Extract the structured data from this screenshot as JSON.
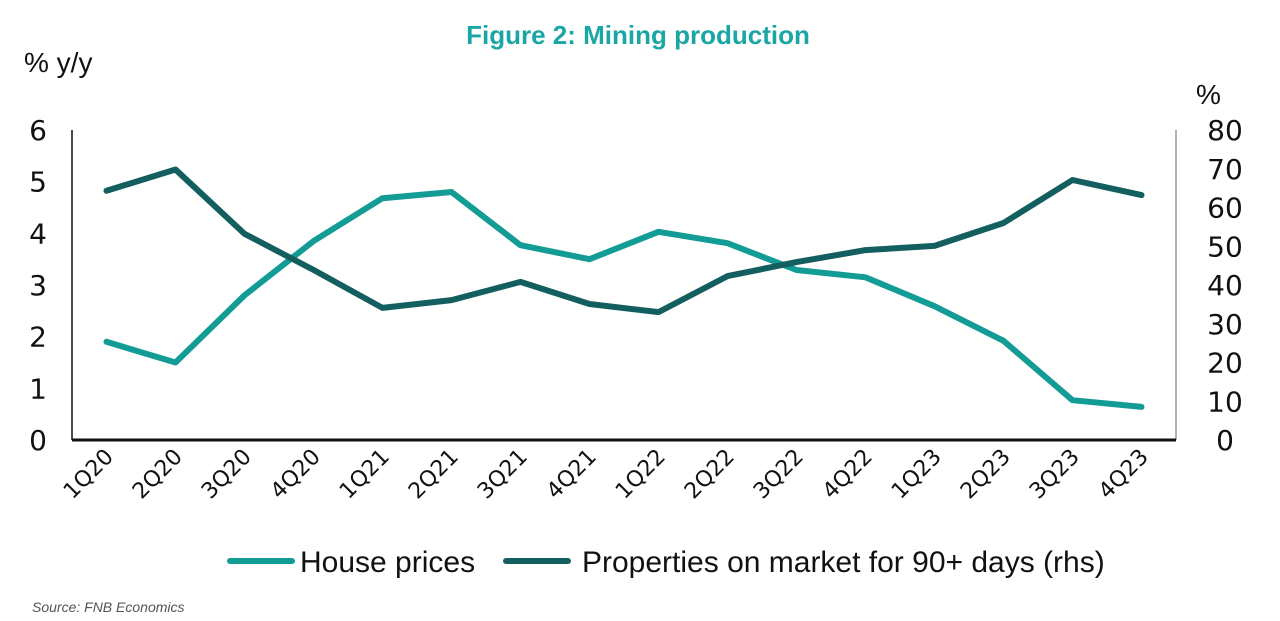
{
  "chart_data": {
    "type": "line",
    "title": "Figure 2: Mining production",
    "ylabel_left": "% y/y",
    "ylabel_right": "%",
    "xlabel": "",
    "categories": [
      "1Q20",
      "2Q20",
      "3Q20",
      "4Q20",
      "1Q21",
      "2Q21",
      "3Q21",
      "4Q21",
      "1Q22",
      "2Q22",
      "3Q22",
      "4Q22",
      "1Q23",
      "2Q23",
      "3Q23",
      "4Q23"
    ],
    "ylim_left": [
      0,
      6
    ],
    "yticks_left": [
      0,
      1,
      2,
      3,
      4,
      5,
      6
    ],
    "ylim_right": [
      0,
      80
    ],
    "yticks_right": [
      0,
      10,
      20,
      30,
      40,
      50,
      60,
      70,
      80
    ],
    "grid": false,
    "legend_position": "bottom",
    "series": [
      {
        "name": "House prices",
        "axis": "left",
        "color": "#139C96",
        "values": [
          1.9,
          1.5,
          2.8,
          3.85,
          4.68,
          4.8,
          3.77,
          3.5,
          4.03,
          3.81,
          3.29,
          3.15,
          2.59,
          1.92,
          0.77,
          0.64
        ]
      },
      {
        "name": "Properties on market for 90+ days (rhs)",
        "axis": "right",
        "color": "#135E5E",
        "values": [
          64.3,
          69.8,
          53.2,
          43.9,
          34.1,
          36.1,
          40.8,
          35.1,
          33.0,
          42.3,
          45.9,
          49.0,
          50.1,
          56.0,
          67.1,
          63.2
        ]
      }
    ],
    "source": "Source: FNB Economics"
  },
  "colors": {
    "title": "#1AA6A4",
    "axis": "#111111",
    "right_axis": "#999999"
  }
}
